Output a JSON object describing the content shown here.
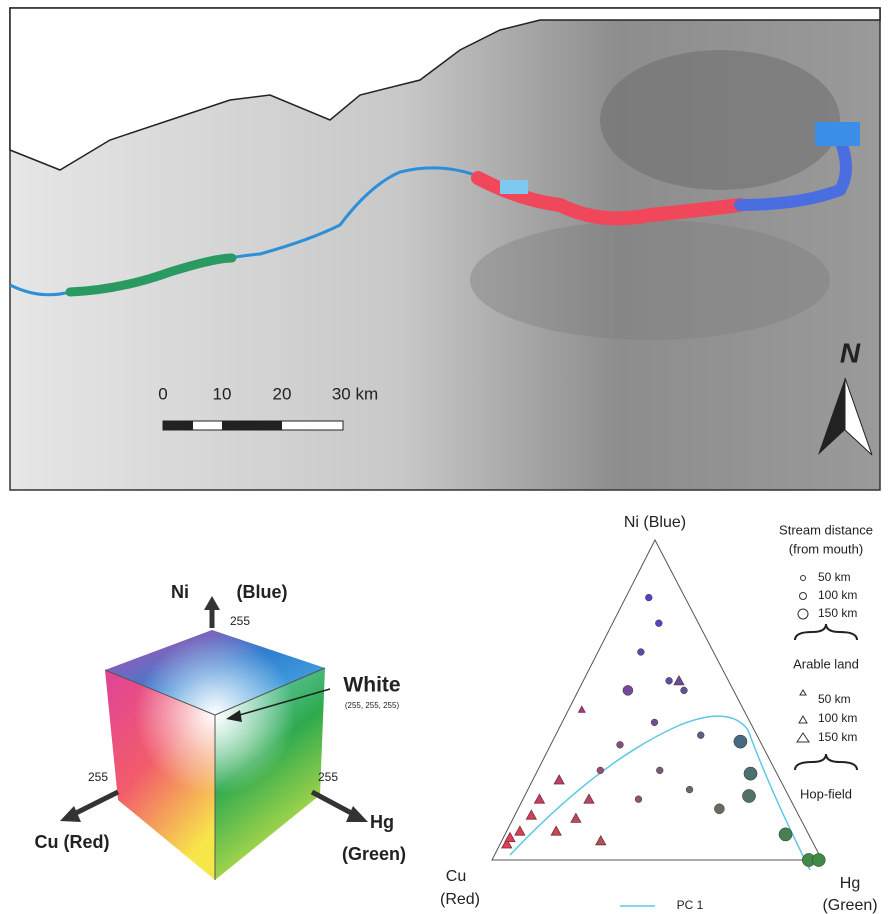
{
  "map": {
    "scale_labels": [
      "0",
      "10",
      "20",
      "30 km"
    ],
    "north": "N"
  },
  "cube": {
    "ni": "Ni",
    "ni_color": "(Blue)",
    "ni_max": "255",
    "white": "White",
    "white_rgb": "(255, 255, 255)",
    "cu_max": "255",
    "hg_max": "255",
    "cu": "Cu (Red)",
    "hg": "Hg",
    "hg_color": "(Green)"
  },
  "ternary": {
    "top": "Ni (Blue)",
    "left": "Cu",
    "left_color": "(Red)",
    "right": "Hg",
    "right_color": "(Green)",
    "pc_label": "PC 1",
    "points": [
      {
        "shape": "circle",
        "ni": 0.82,
        "hg": 0.07,
        "cu": 0.11,
        "distance_km": 50
      },
      {
        "shape": "circle",
        "ni": 0.74,
        "hg": 0.14,
        "cu": 0.12,
        "distance_km": 50
      },
      {
        "shape": "circle",
        "ni": 0.65,
        "hg": 0.13,
        "cu": 0.22,
        "distance_km": 50
      },
      {
        "shape": "circle",
        "ni": 0.56,
        "hg": 0.26,
        "cu": 0.18,
        "distance_km": 50
      },
      {
        "shape": "circle",
        "ni": 0.53,
        "hg": 0.32,
        "cu": 0.15,
        "distance_km": 50
      },
      {
        "shape": "circle",
        "ni": 0.53,
        "hg": 0.15,
        "cu": 0.32,
        "distance_km": 100
      },
      {
        "shape": "circle",
        "ni": 0.43,
        "hg": 0.28,
        "cu": 0.29,
        "distance_km": 50
      },
      {
        "shape": "circle",
        "ni": 0.39,
        "hg": 0.44,
        "cu": 0.17,
        "distance_km": 50
      },
      {
        "shape": "circle",
        "ni": 0.37,
        "hg": 0.57,
        "cu": 0.06,
        "distance_km": 150
      },
      {
        "shape": "circle",
        "ni": 0.27,
        "hg": 0.65,
        "cu": 0.08,
        "distance_km": 150
      },
      {
        "shape": "circle",
        "ni": 0.2,
        "hg": 0.68,
        "cu": 0.12,
        "distance_km": 150
      },
      {
        "shape": "circle",
        "ni": 0.08,
        "hg": 0.85,
        "cu": 0.07,
        "distance_km": 150
      },
      {
        "shape": "circle",
        "ni": 0.0,
        "hg": 0.96,
        "cu": 0.04,
        "distance_km": 150
      },
      {
        "shape": "circle",
        "ni": 0.0,
        "hg": 0.99,
        "cu": 0.01,
        "distance_km": 150
      },
      {
        "shape": "circle",
        "ni": 0.36,
        "hg": 0.21,
        "cu": 0.43,
        "distance_km": 50
      },
      {
        "shape": "circle",
        "ni": 0.28,
        "hg": 0.19,
        "cu": 0.53,
        "distance_km": 50
      },
      {
        "shape": "circle",
        "ni": 0.28,
        "hg": 0.37,
        "cu": 0.35,
        "distance_km": 50
      },
      {
        "shape": "circle",
        "ni": 0.22,
        "hg": 0.49,
        "cu": 0.29,
        "distance_km": 50
      },
      {
        "shape": "circle",
        "ni": 0.16,
        "hg": 0.61,
        "cu": 0.23,
        "distance_km": 100
      },
      {
        "shape": "circle",
        "ni": 0.19,
        "hg": 0.35,
        "cu": 0.46,
        "distance_km": 50
      },
      {
        "shape": "triangle",
        "ni": 0.47,
        "hg": 0.04,
        "cu": 0.49,
        "distance_km": 50
      },
      {
        "shape": "triangle",
        "ni": 0.25,
        "hg": 0.08,
        "cu": 0.67,
        "distance_km": 100
      },
      {
        "shape": "triangle",
        "ni": 0.19,
        "hg": 0.05,
        "cu": 0.76,
        "distance_km": 100
      },
      {
        "shape": "triangle",
        "ni": 0.09,
        "hg": 0.04,
        "cu": 0.87,
        "distance_km": 100
      },
      {
        "shape": "triangle",
        "ni": 0.05,
        "hg": 0.02,
        "cu": 0.93,
        "distance_km": 100
      },
      {
        "shape": "triangle",
        "ni": 0.13,
        "hg": 0.19,
        "cu": 0.68,
        "distance_km": 100
      },
      {
        "shape": "triangle",
        "ni": 0.06,
        "hg": 0.3,
        "cu": 0.64,
        "distance_km": 100
      },
      {
        "shape": "triangle",
        "ni": 0.14,
        "hg": 0.05,
        "cu": 0.81,
        "distance_km": 100
      },
      {
        "shape": "triangle",
        "ni": 0.09,
        "hg": 0.15,
        "cu": 0.76,
        "distance_km": 100
      },
      {
        "shape": "triangle",
        "ni": 0.56,
        "hg": 0.29,
        "cu": 0.15,
        "distance_km": 100
      },
      {
        "shape": "triangle",
        "ni": 0.07,
        "hg": 0.02,
        "cu": 0.91,
        "distance_km": 100
      },
      {
        "shape": "triangle",
        "ni": 0.19,
        "hg": 0.2,
        "cu": 0.61,
        "distance_km": 100
      }
    ]
  },
  "legend": {
    "title": "Stream distance",
    "subtitle": "(from mouth)",
    "circle_labels": [
      "50 km",
      "100 km",
      "150 km"
    ],
    "circle_group": "Arable land",
    "triangle_labels": [
      "50 km",
      "100 km",
      "150 km"
    ],
    "triangle_group": "Hop-field"
  }
}
